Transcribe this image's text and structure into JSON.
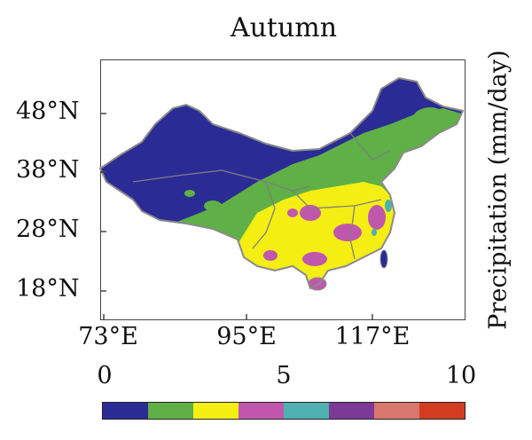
{
  "title": "Autumn",
  "colorbar_label": "Precipitation (mm/day)",
  "latitude_labels": [
    "48°N",
    "38°N",
    "28°N",
    "18°N"
  ],
  "longitude_labels": [
    "73°E",
    "95°E",
    "117°E"
  ],
  "colorbar": {
    "ticks": [
      "0",
      "5",
      "10"
    ],
    "range": [
      0,
      10
    ],
    "bins": [
      {
        "from": 0,
        "to": 1.25,
        "color": "#2b2b96"
      },
      {
        "from": 1.25,
        "to": 2.5,
        "color": "#5fb046"
      },
      {
        "from": 2.5,
        "to": 3.75,
        "color": "#f4ee12"
      },
      {
        "from": 3.75,
        "to": 5,
        "color": "#c157ad"
      },
      {
        "from": 5,
        "to": 6.25,
        "color": "#4fb0b0"
      },
      {
        "from": 6.25,
        "to": 7.5,
        "color": "#7a3a96"
      },
      {
        "from": 7.5,
        "to": 8.75,
        "color": "#d9776e"
      },
      {
        "from": 8.75,
        "to": 10,
        "color": "#d23d21"
      }
    ]
  },
  "colors": {
    "border_line": "#8a8a8a",
    "frame": "#444444"
  }
}
